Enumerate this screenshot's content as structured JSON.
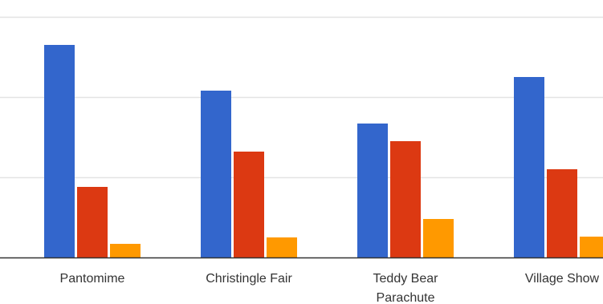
{
  "chart_data": {
    "type": "bar",
    "categories": [
      [
        "Pantomime"
      ],
      [
        "Christingle Fair"
      ],
      [
        "Teddy Bear",
        "Parachute"
      ],
      [
        "Village Show"
      ]
    ],
    "series": [
      {
        "color": "#3366cc",
        "values": [
          265,
          208,
          167,
          225
        ]
      },
      {
        "color": "#dc3912",
        "values": [
          88,
          132,
          145,
          110
        ]
      },
      {
        "color": "#ff9900",
        "values": [
          17,
          25,
          48,
          26
        ]
      }
    ],
    "ylim": [
      0,
      310
    ],
    "gridlines": [
      100,
      200,
      300
    ],
    "grid": true,
    "xlabel": "",
    "ylabel": "",
    "title": ""
  }
}
